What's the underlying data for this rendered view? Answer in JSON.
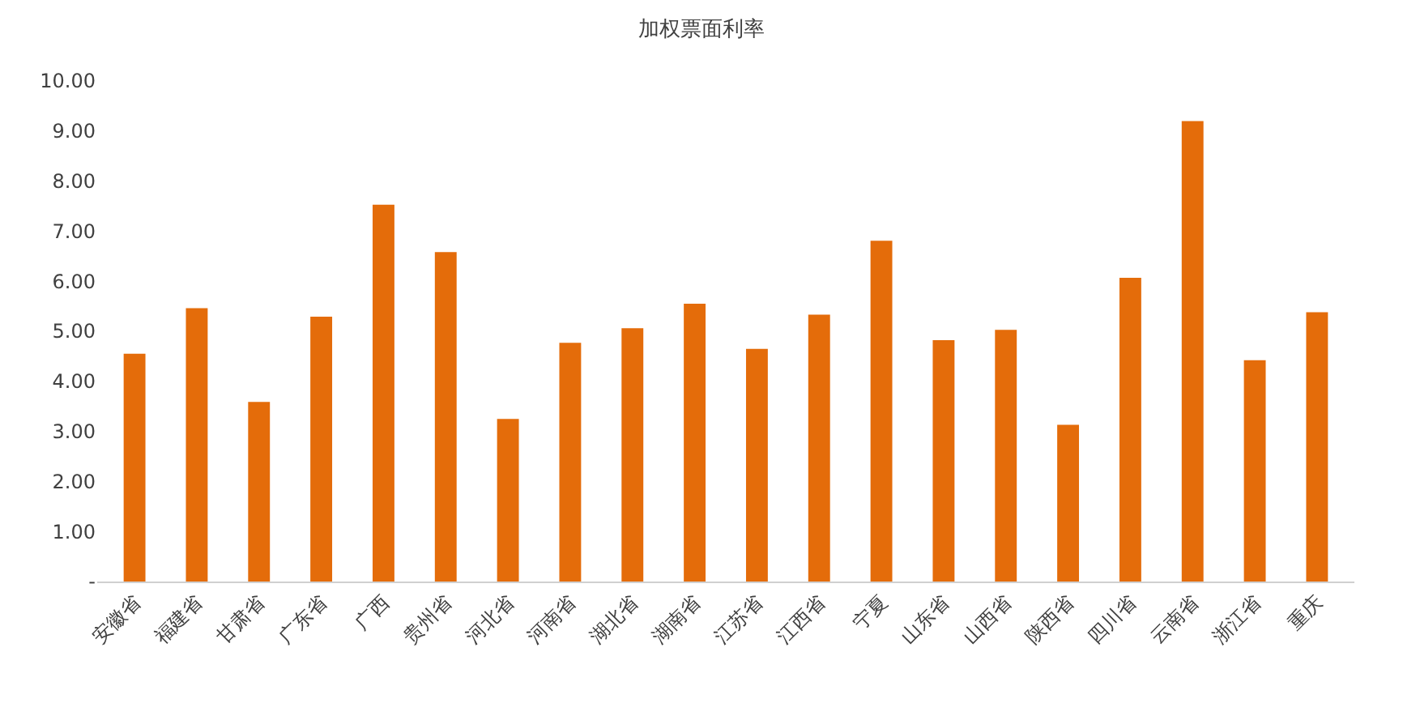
{
  "chart_data": {
    "type": "bar",
    "title": "加权票面利率",
    "categories": [
      "安徽省",
      "福建省",
      "甘肃省",
      "广东省",
      "广西",
      "贵州省",
      "河北省",
      "河南省",
      "湖北省",
      "湖南省",
      "江苏省",
      "江西省",
      "宁夏",
      "山东省",
      "山西省",
      "陕西省",
      "四川省",
      "云南省",
      "浙江省",
      "重庆"
    ],
    "values": [
      4.55,
      5.46,
      3.59,
      5.29,
      7.53,
      6.58,
      3.25,
      4.77,
      5.06,
      5.55,
      4.65,
      5.33,
      6.81,
      4.82,
      5.03,
      3.13,
      6.07,
      9.2,
      4.42,
      5.38
    ],
    "color": "#e46c0a",
    "ylim": [
      0,
      10
    ],
    "yticks": [
      {
        "value": 0,
        "label": "-"
      },
      {
        "value": 1,
        "label": "1.00"
      },
      {
        "value": 2,
        "label": "2.00"
      },
      {
        "value": 3,
        "label": "3.00"
      },
      {
        "value": 4,
        "label": "4.00"
      },
      {
        "value": 5,
        "label": "5.00"
      },
      {
        "value": 6,
        "label": "6.00"
      },
      {
        "value": 7,
        "label": "7.00"
      },
      {
        "value": 8,
        "label": "8.00"
      },
      {
        "value": 9,
        "label": "9.00"
      },
      {
        "value": 10,
        "label": "10.00"
      }
    ],
    "grid": false,
    "legend": false
  }
}
